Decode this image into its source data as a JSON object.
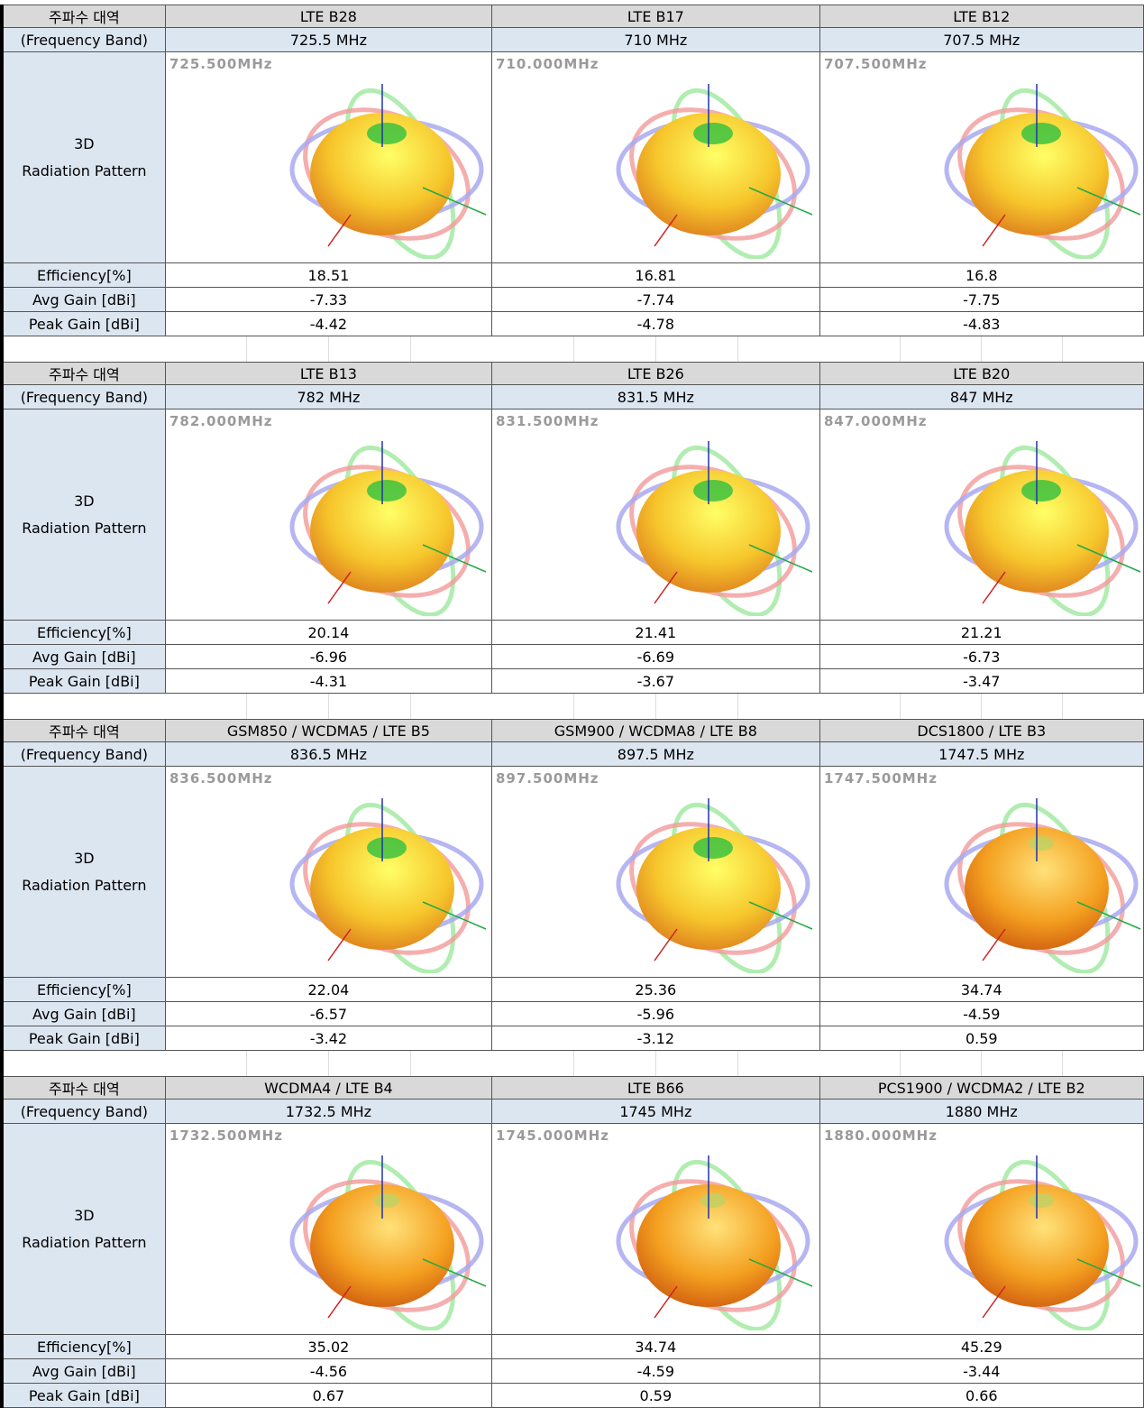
{
  "blocks": [
    {
      "row_labels": {
        "band": "주파수 대역",
        "frequency": "(Frequency Band)",
        "pattern": [
          "3D",
          "Radiation Pattern"
        ],
        "efficiency": "Efficiency[%]",
        "avg_gain": "Avg Gain [dBi]",
        "peak_gain": "Peak Gain [dBi]"
      },
      "columns": [
        {
          "band": "LTE B28",
          "frequency": "725.5 MHz",
          "pattern_label": "725.500MHz",
          "efficiency": 18.51,
          "avg_gain": -7.33,
          "peak_gain": -4.42
        },
        {
          "band": "LTE B17",
          "frequency": "710 MHz",
          "pattern_label": "710.000MHz",
          "efficiency": 16.81,
          "avg_gain": -7.74,
          "peak_gain": -4.78
        },
        {
          "band": "LTE B12",
          "frequency": "707.5 MHz",
          "pattern_label": "707.500MHz",
          "efficiency": 16.8,
          "avg_gain": -7.75,
          "peak_gain": -4.83
        }
      ]
    },
    {
      "row_labels": {
        "band": "주파수 대역",
        "frequency": "(Frequency Band)",
        "pattern": [
          "3D",
          "Radiation Pattern"
        ],
        "efficiency": "Efficiency[%]",
        "avg_gain": "Avg Gain [dBi]",
        "peak_gain": "Peak Gain [dBi]"
      },
      "columns": [
        {
          "band": "LTE B13",
          "frequency": "782 MHz",
          "pattern_label": "782.000MHz",
          "efficiency": 20.14,
          "avg_gain": -6.96,
          "peak_gain": -4.31
        },
        {
          "band": "LTE B26",
          "frequency": "831.5 MHz",
          "pattern_label": "831.500MHz",
          "efficiency": 21.41,
          "avg_gain": -6.69,
          "peak_gain": -3.67
        },
        {
          "band": "LTE B20",
          "frequency": "847 MHz",
          "pattern_label": "847.000MHz",
          "efficiency": 21.21,
          "avg_gain": -6.73,
          "peak_gain": -3.47
        }
      ]
    },
    {
      "row_labels": {
        "band": "주파수 대역",
        "frequency": "(Frequency Band)",
        "pattern": [
          "3D",
          "Radiation Pattern"
        ],
        "efficiency": "Efficiency[%]",
        "avg_gain": "Avg Gain [dBi]",
        "peak_gain": "Peak Gain [dBi]"
      },
      "columns": [
        {
          "band": "GSM850 / WCDMA5 / LTE B5",
          "frequency": "836.5 MHz",
          "pattern_label": "836.500MHz",
          "efficiency": 22.04,
          "avg_gain": -6.57,
          "peak_gain": -3.42
        },
        {
          "band": "GSM900 / WCDMA8 / LTE B8",
          "frequency": "897.5 MHz",
          "pattern_label": "897.500MHz",
          "efficiency": 25.36,
          "avg_gain": -5.96,
          "peak_gain": -3.12
        },
        {
          "band": "DCS1800 / LTE B3",
          "frequency": "1747.5 MHz",
          "pattern_label": "1747.500MHz",
          "efficiency": 34.74,
          "avg_gain": -4.59,
          "peak_gain": 0.59
        }
      ]
    },
    {
      "row_labels": {
        "band": "주파수 대역",
        "frequency": "(Frequency Band)",
        "pattern": [
          "3D",
          "Radiation Pattern"
        ],
        "efficiency": "Efficiency[%]",
        "avg_gain": "Avg Gain [dBi]",
        "peak_gain": "Peak Gain [dBi]"
      },
      "columns": [
        {
          "band": "WCDMA4 / LTE B4",
          "frequency": "1732.5 MHz",
          "pattern_label": "1732.500MHz",
          "efficiency": 35.02,
          "avg_gain": -4.56,
          "peak_gain": 0.67
        },
        {
          "band": "LTE B66",
          "frequency": "1745 MHz",
          "pattern_label": "1745.000MHz",
          "efficiency": 34.74,
          "avg_gain": -4.59,
          "peak_gain": 0.59
        },
        {
          "band": "PCS1900 / WCDMA2 / LTE B2",
          "frequency": "1880 MHz",
          "pattern_label": "1880.000MHz",
          "efficiency": 45.29,
          "avg_gain": -3.44,
          "peak_gain": 0.66
        }
      ]
    }
  ]
}
